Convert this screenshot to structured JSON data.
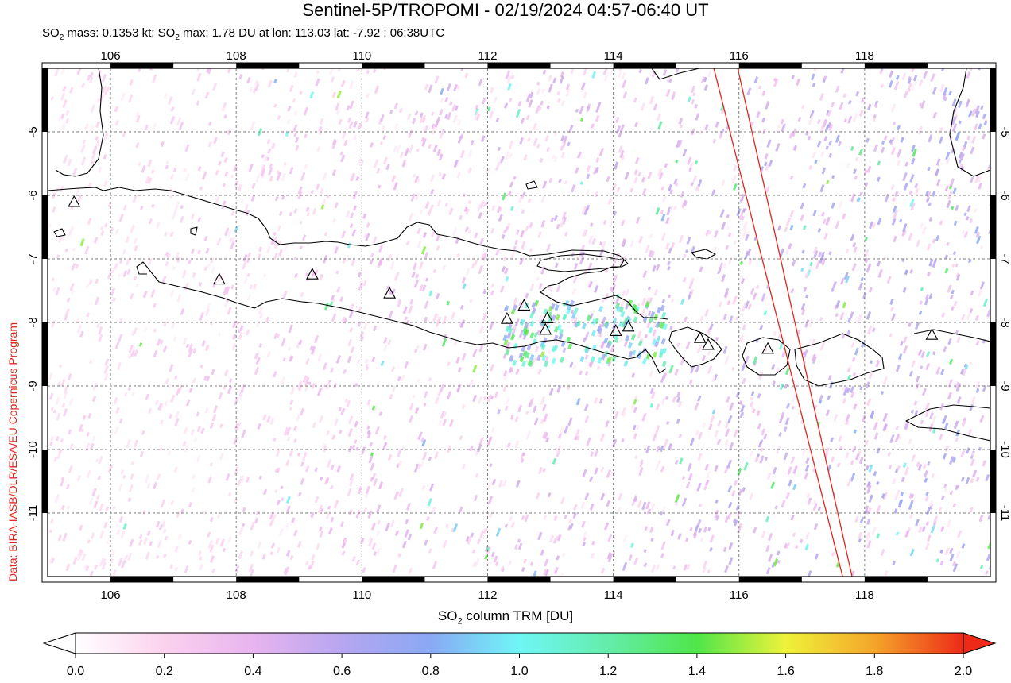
{
  "header": {
    "title": "Sentinel-5P/TROPOMI - 02/19/2024 04:57-06:40 UT",
    "stats_line": {
      "p1": "SO",
      "s1": "2",
      "p2": " mass: 0.1353 kt; SO",
      "s2": "2",
      "p3": " max: 1.78 DU at lon: 113.03 lat: -7.92 ; 06:38UTC"
    }
  },
  "credit": "Data: BIRA-IASB/DLR/ESA/EU Copernicus Program",
  "map": {
    "lon_range": [
      105.0,
      120.0
    ],
    "lat_range": [
      -12.0,
      -4.0
    ],
    "lon_ticks": [
      "106",
      "108",
      "110",
      "112",
      "114",
      "116",
      "118"
    ],
    "lat_ticks": [
      "-5",
      "-6",
      "-7",
      "-8",
      "-9",
      "-10",
      "-11"
    ],
    "volcanoes": [
      [
        105.42,
        -6.1
      ],
      [
        107.73,
        -7.32
      ],
      [
        109.21,
        -7.24
      ],
      [
        110.44,
        -7.54
      ],
      [
        112.31,
        -7.94
      ],
      [
        112.58,
        -7.73
      ],
      [
        112.95,
        -7.93
      ],
      [
        112.92,
        -8.11
      ],
      [
        114.04,
        -8.13
      ],
      [
        114.24,
        -8.06
      ],
      [
        115.38,
        -8.24
      ],
      [
        115.51,
        -8.35
      ],
      [
        116.46,
        -8.41
      ],
      [
        119.07,
        -8.19
      ]
    ],
    "swath_gap": {
      "left_edge": [
        [
          115.6,
          -4.0
        ],
        [
          117.65,
          -12.0
        ]
      ],
      "right_edge": [
        [
          115.98,
          -4.0
        ],
        [
          117.8,
          -12.0
        ]
      ]
    },
    "colors": {
      "land_outline": "#000000",
      "volcano_marker": "#000000",
      "swath_edge": "#e0261d",
      "grid": "#7f7f7f"
    }
  },
  "colorbar": {
    "label": {
      "p1": "SO",
      "s1": "2",
      "p2": " column TRM [DU]"
    },
    "min": 0.0,
    "max": 2.0,
    "ticks": [
      "0.0",
      "0.2",
      "0.4",
      "0.6",
      "0.8",
      "1.0",
      "1.2",
      "1.4",
      "1.6",
      "1.8",
      "2.0"
    ],
    "stops": [
      [
        0.0,
        "#ffffff"
      ],
      [
        0.2,
        "#fbd2ee"
      ],
      [
        0.4,
        "#e7b4ee"
      ],
      [
        0.6,
        "#b6a6ef"
      ],
      [
        0.8,
        "#8aa8f4"
      ],
      [
        1.0,
        "#6ff6f6"
      ],
      [
        1.2,
        "#64ecaa"
      ],
      [
        1.4,
        "#4fe64a"
      ],
      [
        1.6,
        "#eef23a"
      ],
      [
        1.8,
        "#f4a52a"
      ],
      [
        2.0,
        "#ed2a18"
      ]
    ]
  }
}
